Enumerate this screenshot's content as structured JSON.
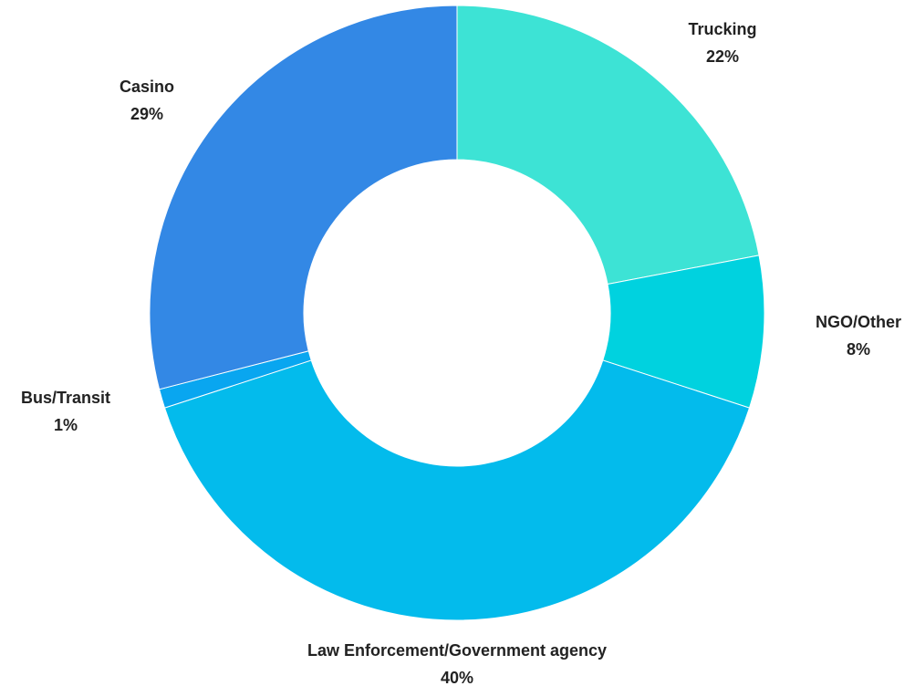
{
  "chart_data": {
    "type": "pie",
    "donut": true,
    "slices": [
      {
        "label": "Trucking",
        "value": 22,
        "value_label": "22%",
        "color": "#3de3d5"
      },
      {
        "label": "NGO/Other",
        "value": 8,
        "value_label": "8%",
        "color": "#00d2df"
      },
      {
        "label": "Law Enforcement/Government agency",
        "value": 40,
        "value_label": "40%",
        "color": "#03bbec"
      },
      {
        "label": "Bus/Transit",
        "value": 1,
        "value_label": "1%",
        "color": "#09a6f0"
      },
      {
        "label": "Casino",
        "value": 29,
        "value_label": "29%",
        "color": "#3388e5"
      }
    ],
    "start": "top",
    "direction": "clockwise"
  }
}
